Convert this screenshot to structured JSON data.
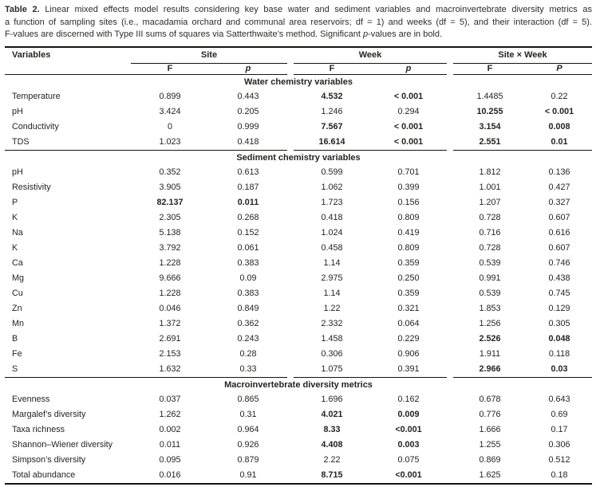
{
  "caption": {
    "label": "Table 2.",
    "line1": "Linear mixed effects model results considering key base water and sediment variables and macroinvertebrate diversity metrics as",
    "line2": "a function of sampling sites (i.e., macadamia orchard and communal area reservoirs; df = 1) and weeks (df = 5), and their interaction (df = 5).",
    "line3_pre": "F-values are discerned with Type III sums of squares via Satterthwaite’s method. Significant ",
    "line3_p": "p",
    "line3_post": "-values are in bold."
  },
  "header": {
    "variables_label": "Variables",
    "site_label": "Site",
    "week_label": "Week",
    "siteweek_label": "Site × Week",
    "f_label": "F",
    "p_label": "p",
    "p_upper_label": "P"
  },
  "sections": [
    {
      "title": "Water chemistry variables",
      "rows": [
        {
          "label": "Temperature",
          "cells": [
            "0.899",
            "0.443",
            "4.532",
            "< 0.001",
            "1.4485",
            "0.22"
          ],
          "bold": [
            2,
            3
          ]
        },
        {
          "label": "pH",
          "cells": [
            "3.424",
            "0.205",
            "1.246",
            "0.294",
            "10.255",
            "< 0.001"
          ],
          "bold": [
            4,
            5
          ]
        },
        {
          "label": "Conductivity",
          "cells": [
            "0",
            "0.999",
            "7.567",
            "< 0.001",
            "3.154",
            "0.008"
          ],
          "bold": [
            2,
            3,
            4,
            5
          ]
        },
        {
          "label": "TDS",
          "cells": [
            "1.023",
            "0.418",
            "16.614",
            "< 0.001",
            "2.551",
            "0.01"
          ],
          "bold": [
            2,
            3,
            4,
            5
          ]
        }
      ]
    },
    {
      "title": "Sediment chemistry variables",
      "rows": [
        {
          "label": "pH",
          "cells": [
            "0.352",
            "0.613",
            "0.599",
            "0.701",
            "1.812",
            "0.136"
          ],
          "bold": []
        },
        {
          "label": "Resistivity",
          "cells": [
            "3.905",
            "0.187",
            "1.062",
            "0.399",
            "1.001",
            "0.427"
          ],
          "bold": []
        },
        {
          "label": "P",
          "cells": [
            "82.137",
            "0.011",
            "1.723",
            "0.156",
            "1.207",
            "0.327"
          ],
          "bold": [
            0,
            1
          ]
        },
        {
          "label": "K",
          "cells": [
            "2.305",
            "0.268",
            "0.418",
            "0.809",
            "0.728",
            "0.607"
          ],
          "bold": []
        },
        {
          "label": "Na",
          "cells": [
            "5.138",
            "0.152",
            "1.024",
            "0.419",
            "0.716",
            "0.616"
          ],
          "bold": []
        },
        {
          "label": "K",
          "cells": [
            "3.792",
            "0.061",
            "0.458",
            "0.809",
            "0.728",
            "0.607"
          ],
          "bold": []
        },
        {
          "label": "Ca",
          "cells": [
            "1.228",
            "0.383",
            "1.14",
            "0.359",
            "0.539",
            "0.746"
          ],
          "bold": []
        },
        {
          "label": "Mg",
          "cells": [
            "9.666",
            "0.09",
            "2.975",
            "0.250",
            "0.991",
            "0.438"
          ],
          "bold": []
        },
        {
          "label": "Cu",
          "cells": [
            "1.228",
            "0.383",
            "1.14",
            "0.359",
            "0.539",
            "0.745"
          ],
          "bold": []
        },
        {
          "label": "Zn",
          "cells": [
            "0.046",
            "0.849",
            "1.22",
            "0.321",
            "1.853",
            "0.129"
          ],
          "bold": []
        },
        {
          "label": "Mn",
          "cells": [
            "1.372",
            "0.362",
            "2.332",
            "0.064",
            "1.256",
            "0.305"
          ],
          "bold": []
        },
        {
          "label": "B",
          "cells": [
            "2.691",
            "0.243",
            "1.458",
            "0.229",
            "2.526",
            "0.048"
          ],
          "bold": [
            4,
            5
          ]
        },
        {
          "label": "Fe",
          "cells": [
            "2.153",
            "0.28",
            "0.306",
            "0.906",
            "1.911",
            "0.118"
          ],
          "bold": []
        },
        {
          "label": "S",
          "cells": [
            "1.632",
            "0.33",
            "1.075",
            "0.391",
            "2.966",
            "0.03"
          ],
          "bold": [
            4,
            5
          ]
        }
      ]
    },
    {
      "title": "Macroinvertebrate diversity metrics",
      "rows": [
        {
          "label": "Evenness",
          "cells": [
            "0.037",
            "0.865",
            "1.696",
            "0.162",
            "0.678",
            "0.643"
          ],
          "bold": []
        },
        {
          "label": "Margalef’s diversity",
          "cells": [
            "1.262",
            "0.31",
            "4.021",
            "0.009",
            "0.776",
            "0.69"
          ],
          "bold": [
            2,
            3
          ]
        },
        {
          "label": "Taxa richness",
          "cells": [
            "0.002",
            "0.964",
            "8.33",
            "<0.001",
            "1.666",
            "0.17"
          ],
          "bold": [
            2,
            3
          ]
        },
        {
          "label": "Shannon–Wiener diversity",
          "cells": [
            "0.011",
            "0.926",
            "4.408",
            "0.003",
            "1.255",
            "0.306"
          ],
          "bold": [
            2,
            3
          ]
        },
        {
          "label": "Simpson’s diversity",
          "cells": [
            "0.095",
            "0.879",
            "2.22",
            "0.075",
            "0.869",
            "0.512"
          ],
          "bold": []
        },
        {
          "label": "Total abundance",
          "cells": [
            "0.016",
            "0.91",
            "8.715",
            "<0.001",
            "1.625",
            "0.18"
          ],
          "bold": [
            2,
            3
          ]
        }
      ]
    }
  ]
}
